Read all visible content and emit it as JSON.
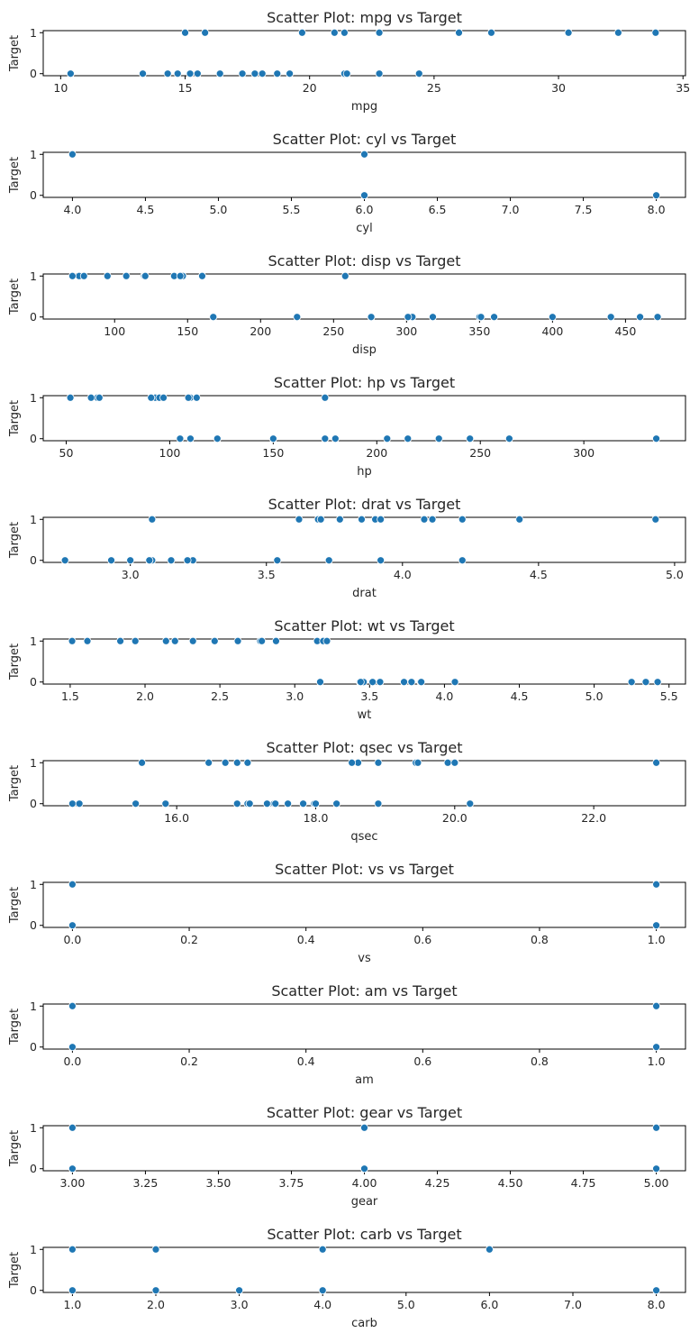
{
  "chart_data": [
    {
      "type": "scatter",
      "title": "Scatter Plot: mpg vs Target",
      "xlabel": "mpg",
      "ylabel": "Target",
      "xlim": [
        9.3,
        35.1
      ],
      "ylim": [
        -0.05,
        1.05
      ],
      "xticks": [
        10,
        15,
        20,
        25,
        30,
        35
      ],
      "yticks": [
        0,
        1
      ],
      "grid": false,
      "legend": "none",
      "points": [
        [
          21.0,
          1
        ],
        [
          21.0,
          1
        ],
        [
          22.8,
          1
        ],
        [
          21.4,
          0
        ],
        [
          18.7,
          0
        ],
        [
          18.1,
          0
        ],
        [
          14.3,
          0
        ],
        [
          24.4,
          0
        ],
        [
          22.8,
          0
        ],
        [
          19.2,
          0
        ],
        [
          17.8,
          0
        ],
        [
          16.4,
          0
        ],
        [
          17.3,
          0
        ],
        [
          15.2,
          0
        ],
        [
          10.4,
          0
        ],
        [
          10.4,
          0
        ],
        [
          14.7,
          0
        ],
        [
          32.4,
          1
        ],
        [
          30.4,
          1
        ],
        [
          33.9,
          1
        ],
        [
          21.5,
          0
        ],
        [
          15.5,
          0
        ],
        [
          15.2,
          0
        ],
        [
          13.3,
          0
        ],
        [
          19.2,
          0
        ],
        [
          27.3,
          1
        ],
        [
          26.0,
          1
        ],
        [
          30.4,
          1
        ],
        [
          15.8,
          1
        ],
        [
          19.7,
          1
        ],
        [
          15.0,
          1
        ],
        [
          21.4,
          1
        ]
      ]
    },
    {
      "type": "scatter",
      "title": "Scatter Plot: cyl vs Target",
      "xlabel": "cyl",
      "ylabel": "Target",
      "xlim": [
        3.8,
        8.2
      ],
      "ylim": [
        -0.05,
        1.05
      ],
      "xticks": [
        4.0,
        4.5,
        5.0,
        5.5,
        6.0,
        6.5,
        7.0,
        7.5,
        8.0
      ],
      "yticks": [
        0,
        1
      ],
      "grid": false,
      "legend": "none",
      "points": [
        [
          4,
          1
        ],
        [
          6,
          1
        ],
        [
          6,
          0
        ],
        [
          8,
          0
        ]
      ]
    },
    {
      "type": "scatter",
      "title": "Scatter Plot: disp vs Target",
      "xlabel": "disp",
      "ylabel": "Target",
      "xlim": [
        51.1,
        491.1
      ],
      "ylim": [
        -0.05,
        1.05
      ],
      "xticks": [
        100,
        150,
        200,
        250,
        300,
        350,
        400,
        450
      ],
      "yticks": [
        0,
        1
      ],
      "grid": false,
      "legend": "none",
      "points": [
        [
          160,
          1
        ],
        [
          160,
          1
        ],
        [
          108,
          1
        ],
        [
          258,
          1
        ],
        [
          146.7,
          1
        ],
        [
          140.8,
          1
        ],
        [
          78.7,
          1
        ],
        [
          75.7,
          1
        ],
        [
          71.1,
          1
        ],
        [
          120.1,
          1
        ],
        [
          79,
          1
        ],
        [
          120.3,
          1
        ],
        [
          95.1,
          1
        ],
        [
          121,
          1
        ],
        [
          145,
          1
        ],
        [
          360,
          0
        ],
        [
          225,
          0
        ],
        [
          167.6,
          0
        ],
        [
          167.6,
          0
        ],
        [
          275.8,
          0
        ],
        [
          275.8,
          0
        ],
        [
          275.8,
          0
        ],
        [
          472,
          0
        ],
        [
          460,
          0
        ],
        [
          440,
          0
        ],
        [
          318,
          0
        ],
        [
          304,
          0
        ],
        [
          350,
          0
        ],
        [
          400,
          0
        ],
        [
          351,
          0
        ],
        [
          301,
          0
        ],
        [
          360,
          0
        ]
      ]
    },
    {
      "type": "scatter",
      "title": "Scatter Plot: hp vs Target",
      "xlabel": "hp",
      "ylabel": "Target",
      "xlim": [
        38.9,
        349.1
      ],
      "ylim": [
        -0.05,
        1.05
      ],
      "xticks": [
        50,
        100,
        150,
        200,
        250,
        300
      ],
      "yticks": [
        0,
        1
      ],
      "grid": false,
      "legend": "none",
      "points": [
        [
          110,
          1
        ],
        [
          110,
          1
        ],
        [
          93,
          1
        ],
        [
          175,
          1
        ],
        [
          95,
          1
        ],
        [
          97,
          1
        ],
        [
          91,
          1
        ],
        [
          113,
          1
        ],
        [
          66,
          1
        ],
        [
          52,
          1
        ],
        [
          65,
          1
        ],
        [
          62,
          1
        ],
        [
          66,
          1
        ],
        [
          109,
          1
        ],
        [
          110,
          0
        ],
        [
          105,
          0
        ],
        [
          123,
          0
        ],
        [
          123,
          0
        ],
        [
          150,
          0
        ],
        [
          175,
          0
        ],
        [
          180,
          0
        ],
        [
          180,
          0
        ],
        [
          205,
          0
        ],
        [
          215,
          0
        ],
        [
          230,
          0
        ],
        [
          245,
          0
        ],
        [
          264,
          0
        ],
        [
          335,
          0
        ],
        [
          150,
          0
        ],
        [
          175,
          0
        ],
        [
          245,
          0
        ],
        [
          180,
          0
        ]
      ]
    },
    {
      "type": "scatter",
      "title": "Scatter Plot: drat vs Target",
      "xlabel": "drat",
      "ylabel": "Target",
      "xlim": [
        2.68,
        5.04
      ],
      "ylim": [
        -0.05,
        1.05
      ],
      "xticks": [
        3.0,
        3.5,
        4.0,
        4.5,
        5.0
      ],
      "yticks": [
        0,
        1
      ],
      "grid": false,
      "legend": "none",
      "points": [
        [
          3.9,
          1
        ],
        [
          3.9,
          1
        ],
        [
          3.85,
          1
        ],
        [
          3.08,
          1
        ],
        [
          4.08,
          1
        ],
        [
          4.11,
          1
        ],
        [
          3.69,
          1
        ],
        [
          3.7,
          1
        ],
        [
          4.22,
          1
        ],
        [
          4.93,
          1
        ],
        [
          4.43,
          1
        ],
        [
          3.62,
          1
        ],
        [
          3.77,
          1
        ],
        [
          3.92,
          1
        ],
        [
          2.76,
          0
        ],
        [
          3.08,
          0
        ],
        [
          3.15,
          0
        ],
        [
          2.93,
          0
        ],
        [
          3.0,
          0
        ],
        [
          3.07,
          0
        ],
        [
          3.21,
          0
        ],
        [
          3.23,
          0
        ],
        [
          3.54,
          0
        ],
        [
          3.73,
          0
        ],
        [
          4.22,
          0
        ],
        [
          3.92,
          0
        ],
        [
          3.07,
          0
        ],
        [
          3.23,
          0
        ],
        [
          2.76,
          0
        ],
        [
          3.15,
          0
        ],
        [
          3.07,
          0
        ],
        [
          3.21,
          0
        ]
      ]
    },
    {
      "type": "scatter",
      "title": "Scatter Plot: wt vs Target",
      "xlabel": "wt",
      "ylabel": "Target",
      "xlim": [
        1.32,
        5.61
      ],
      "ylim": [
        -0.05,
        1.05
      ],
      "xticks": [
        1.5,
        2.0,
        2.5,
        3.0,
        3.5,
        4.0,
        4.5,
        5.0,
        5.5
      ],
      "yticks": [
        0,
        1
      ],
      "grid": false,
      "legend": "none",
      "points": [
        [
          1.513,
          1
        ],
        [
          1.615,
          1
        ],
        [
          1.835,
          1
        ],
        [
          1.935,
          1
        ],
        [
          2.14,
          1
        ],
        [
          2.2,
          1
        ],
        [
          2.32,
          1
        ],
        [
          2.465,
          1
        ],
        [
          2.62,
          1
        ],
        [
          2.77,
          1
        ],
        [
          2.78,
          1
        ],
        [
          2.875,
          1
        ],
        [
          3.15,
          1
        ],
        [
          3.19,
          1
        ],
        [
          3.215,
          1
        ],
        [
          3.17,
          0
        ],
        [
          3.44,
          0
        ],
        [
          3.46,
          0
        ],
        [
          3.52,
          0
        ],
        [
          3.57,
          0
        ],
        [
          3.73,
          0
        ],
        [
          3.78,
          0
        ],
        [
          3.84,
          0
        ],
        [
          4.07,
          0
        ],
        [
          5.25,
          0
        ],
        [
          5.345,
          0
        ],
        [
          5.424,
          0
        ],
        [
          3.435,
          0
        ],
        [
          3.57,
          0
        ],
        [
          3.44,
          0
        ],
        [
          3.845,
          0
        ],
        [
          3.73,
          0
        ]
      ]
    },
    {
      "type": "scatter",
      "title": "Scatter Plot: qsec vs Target",
      "xlabel": "qsec",
      "ylabel": "Target",
      "xlim": [
        14.08,
        23.32
      ],
      "ylim": [
        -0.05,
        1.05
      ],
      "xticks": [
        16,
        18,
        20,
        22
      ],
      "yticks": [
        0,
        1
      ],
      "grid": false,
      "legend": "none",
      "points": [
        [
          16.46,
          1
        ],
        [
          17.02,
          1
        ],
        [
          18.61,
          1
        ],
        [
          19.44,
          1
        ],
        [
          18.52,
          1
        ],
        [
          19.47,
          1
        ],
        [
          18.9,
          1
        ],
        [
          20.01,
          1
        ],
        [
          19.9,
          1
        ],
        [
          15.5,
          1
        ],
        [
          16.7,
          1
        ],
        [
          16.87,
          1
        ],
        [
          22.9,
          1
        ],
        [
          20.0,
          1
        ],
        [
          14.5,
          0
        ],
        [
          14.6,
          0
        ],
        [
          15.41,
          0
        ],
        [
          15.84,
          0
        ],
        [
          16.87,
          0
        ],
        [
          17.02,
          0
        ],
        [
          17.05,
          0
        ],
        [
          17.3,
          0
        ],
        [
          17.4,
          0
        ],
        [
          17.6,
          0
        ],
        [
          17.82,
          0
        ],
        [
          17.98,
          0
        ],
        [
          18.0,
          0
        ],
        [
          18.3,
          0
        ],
        [
          18.9,
          0
        ],
        [
          20.22,
          0
        ],
        [
          17.42,
          0
        ],
        [
          17.05,
          0
        ]
      ]
    },
    {
      "type": "scatter",
      "title": "Scatter Plot: vs vs Target",
      "xlabel": "vs",
      "ylabel": "Target",
      "xlim": [
        -0.05,
        1.05
      ],
      "ylim": [
        -0.05,
        1.05
      ],
      "xticks": [
        0.0,
        0.2,
        0.4,
        0.6,
        0.8,
        1.0
      ],
      "yticks": [
        0,
        1
      ],
      "grid": false,
      "legend": "none",
      "points": [
        [
          0,
          1
        ],
        [
          0,
          0
        ],
        [
          1,
          1
        ],
        [
          1,
          0
        ]
      ]
    },
    {
      "type": "scatter",
      "title": "Scatter Plot: am vs Target",
      "xlabel": "am",
      "ylabel": "Target",
      "xlim": [
        -0.05,
        1.05
      ],
      "ylim": [
        -0.05,
        1.05
      ],
      "xticks": [
        0.0,
        0.2,
        0.4,
        0.6,
        0.8,
        1.0
      ],
      "yticks": [
        0,
        1
      ],
      "grid": false,
      "legend": "none",
      "points": [
        [
          0,
          1
        ],
        [
          0,
          0
        ],
        [
          1,
          1
        ],
        [
          1,
          0
        ]
      ]
    },
    {
      "type": "scatter",
      "title": "Scatter Plot: gear vs Target",
      "xlabel": "gear",
      "ylabel": "Target",
      "xlim": [
        2.9,
        5.1
      ],
      "ylim": [
        -0.05,
        1.05
      ],
      "xticks": [
        3.0,
        3.25,
        3.5,
        3.75,
        4.0,
        4.25,
        4.5,
        4.75,
        5.0
      ],
      "yticks": [
        0,
        1
      ],
      "grid": false,
      "legend": "none",
      "points": [
        [
          3,
          1
        ],
        [
          3,
          0
        ],
        [
          4,
          1
        ],
        [
          4,
          0
        ],
        [
          5,
          1
        ],
        [
          5,
          0
        ]
      ]
    },
    {
      "type": "scatter",
      "title": "Scatter Plot: carb vs Target",
      "xlabel": "carb",
      "ylabel": "Target",
      "xlim": [
        0.65,
        8.35
      ],
      "ylim": [
        -0.05,
        1.05
      ],
      "xticks": [
        1,
        2,
        3,
        4,
        5,
        6,
        7,
        8
      ],
      "yticks": [
        0,
        1
      ],
      "grid": false,
      "legend": "none",
      "points": [
        [
          1,
          1
        ],
        [
          2,
          1
        ],
        [
          4,
          1
        ],
        [
          6,
          1
        ],
        [
          1,
          0
        ],
        [
          2,
          0
        ],
        [
          3,
          0
        ],
        [
          4,
          0
        ],
        [
          8,
          0
        ]
      ]
    }
  ],
  "style": {
    "point_color": "#1f77b4"
  }
}
